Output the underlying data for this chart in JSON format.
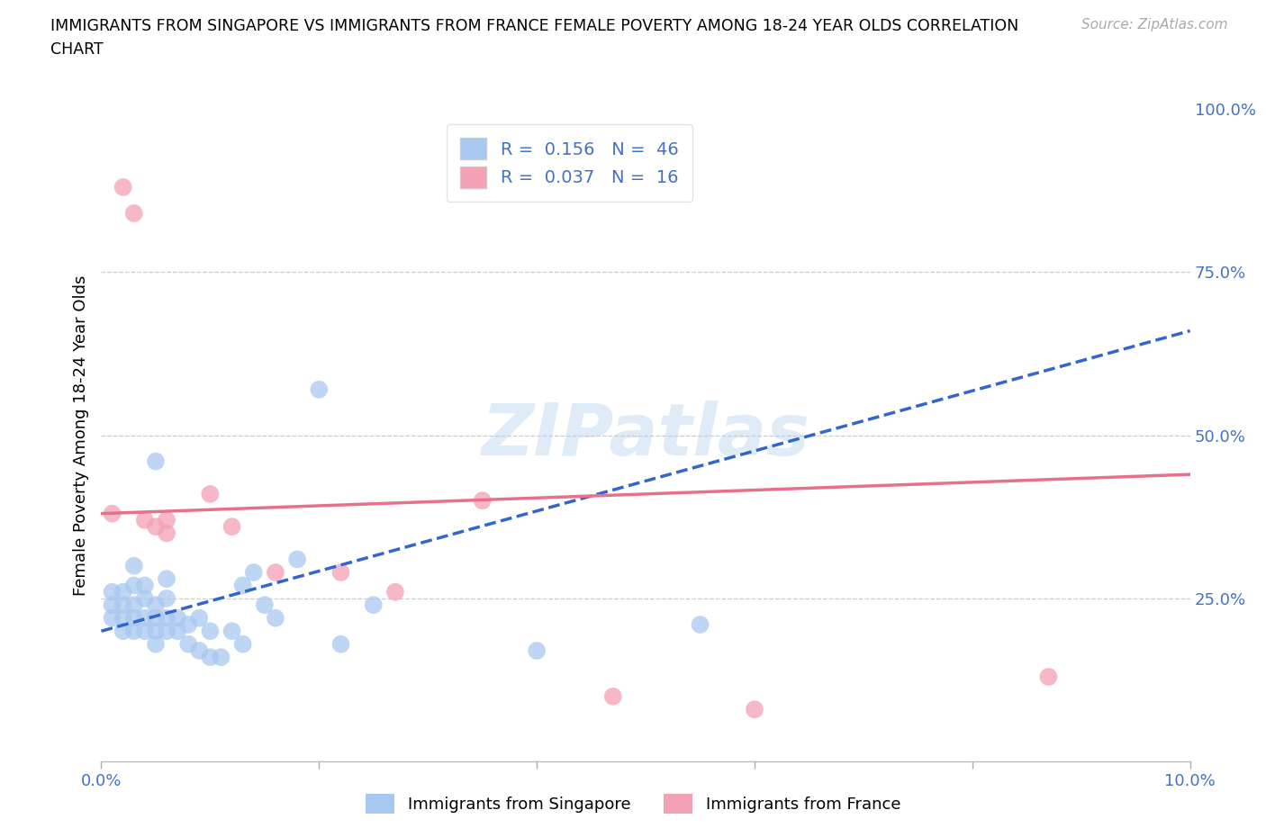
{
  "title_line1": "IMMIGRANTS FROM SINGAPORE VS IMMIGRANTS FROM FRANCE FEMALE POVERTY AMONG 18-24 YEAR OLDS CORRELATION",
  "title_line2": "CHART",
  "source": "Source: ZipAtlas.com",
  "ylabel": "Female Poverty Among 18-24 Year Olds",
  "xlim": [
    0.0,
    0.1
  ],
  "ylim": [
    0.0,
    1.0
  ],
  "singapore_R": 0.156,
  "singapore_N": 46,
  "france_R": 0.037,
  "france_N": 16,
  "singapore_color": "#a8c8f0",
  "france_color": "#f4a0b5",
  "singapore_line_color": "#3366cc",
  "france_line_color": "#e8708a",
  "tick_color": "#4472c4",
  "watermark": "ZIPatlas",
  "bg_color": "#ffffff",
  "legend_label_color": "#4472c4",
  "singapore_x": [
    0.001,
    0.001,
    0.001,
    0.002,
    0.002,
    0.002,
    0.002,
    0.003,
    0.003,
    0.003,
    0.003,
    0.003,
    0.004,
    0.004,
    0.004,
    0.004,
    0.005,
    0.005,
    0.005,
    0.005,
    0.005,
    0.006,
    0.006,
    0.006,
    0.006,
    0.007,
    0.007,
    0.008,
    0.008,
    0.009,
    0.009,
    0.01,
    0.01,
    0.011,
    0.012,
    0.013,
    0.013,
    0.014,
    0.015,
    0.016,
    0.018,
    0.02,
    0.022,
    0.025,
    0.04,
    0.055
  ],
  "singapore_y": [
    0.22,
    0.24,
    0.26,
    0.2,
    0.22,
    0.24,
    0.26,
    0.2,
    0.22,
    0.24,
    0.27,
    0.3,
    0.2,
    0.22,
    0.25,
    0.27,
    0.18,
    0.2,
    0.22,
    0.24,
    0.46,
    0.2,
    0.22,
    0.25,
    0.28,
    0.2,
    0.22,
    0.18,
    0.21,
    0.17,
    0.22,
    0.16,
    0.2,
    0.16,
    0.2,
    0.18,
    0.27,
    0.29,
    0.24,
    0.22,
    0.31,
    0.57,
    0.18,
    0.24,
    0.17,
    0.21
  ],
  "france_x": [
    0.001,
    0.002,
    0.003,
    0.004,
    0.005,
    0.006,
    0.006,
    0.01,
    0.012,
    0.016,
    0.022,
    0.027,
    0.035,
    0.047,
    0.06,
    0.087
  ],
  "france_y": [
    0.38,
    0.88,
    0.84,
    0.37,
    0.36,
    0.35,
    0.37,
    0.41,
    0.36,
    0.29,
    0.29,
    0.26,
    0.4,
    0.1,
    0.08,
    0.13
  ],
  "sg_line_x0": 0.0,
  "sg_line_y0": 0.2,
  "sg_line_x1": 0.1,
  "sg_line_y1": 0.66,
  "fr_line_x0": 0.0,
  "fr_line_y0": 0.38,
  "fr_line_x1": 0.1,
  "fr_line_y1": 0.44
}
